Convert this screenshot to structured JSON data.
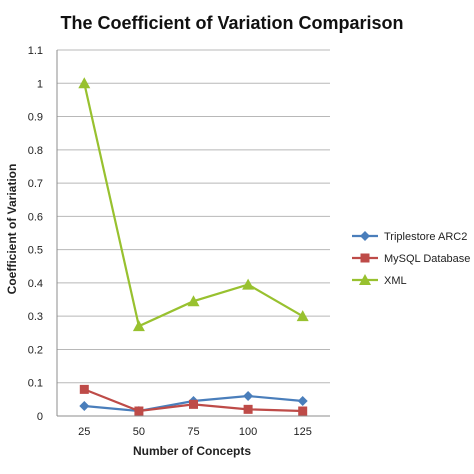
{
  "chart_data": {
    "type": "line",
    "title": "The Coefficient of Variation Comparison",
    "xlabel": "Number of Concepts",
    "ylabel": "Coefficient of Variation",
    "categories": [
      "25",
      "50",
      "75",
      "100",
      "125"
    ],
    "ylim": [
      0,
      1.1
    ],
    "yticks": [
      "0",
      "0.1",
      "0.2",
      "0.3",
      "0.4",
      "0.5",
      "0.6",
      "0.7",
      "0.8",
      "0.9",
      "1",
      "1.1"
    ],
    "grid": true,
    "legend_position": "right",
    "series": [
      {
        "name": "Triplestore ARC2",
        "color": "#4a7ebb",
        "marker": "diamond",
        "values": [
          0.03,
          0.015,
          0.045,
          0.06,
          0.045
        ]
      },
      {
        "name": "MySQL Database",
        "color": "#be4b48",
        "marker": "square",
        "values": [
          0.08,
          0.015,
          0.035,
          0.02,
          0.015
        ]
      },
      {
        "name": "XML",
        "color": "#98c12f",
        "marker": "triangle",
        "values": [
          1.0,
          0.27,
          0.345,
          0.395,
          0.3
        ]
      }
    ]
  }
}
